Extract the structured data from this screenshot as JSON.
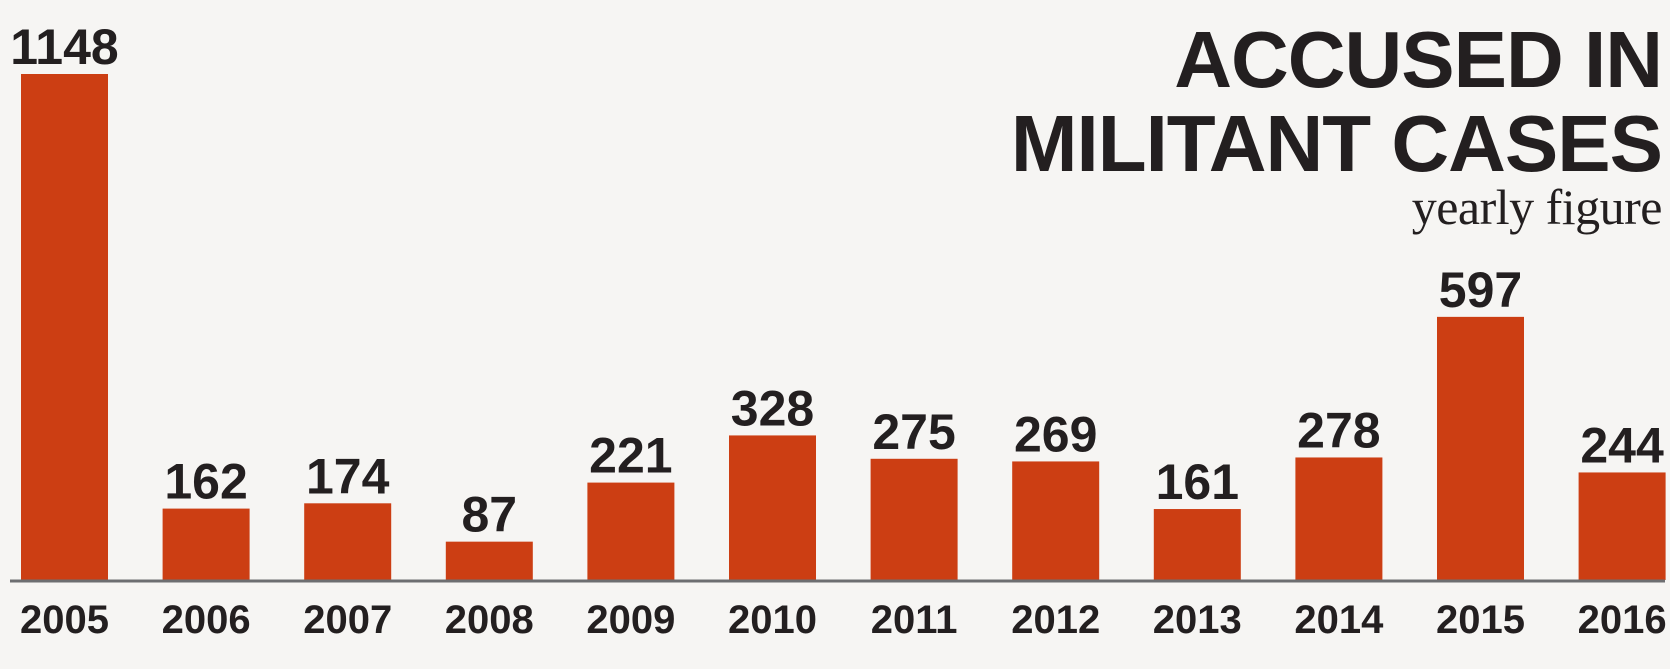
{
  "chart_data": {
    "type": "bar",
    "title_lines": [
      "ACCUSED IN",
      "MILITANT CASES"
    ],
    "subtitle": "yearly figure",
    "categories": [
      "2005",
      "2006",
      "2007",
      "2008",
      "2009",
      "2010",
      "2011",
      "2012",
      "2013",
      "2014",
      "2015",
      "2016"
    ],
    "values": [
      1148,
      162,
      174,
      87,
      221,
      328,
      275,
      269,
      161,
      278,
      597,
      244
    ],
    "value_labels": [
      "1148",
      "162",
      "174",
      "87",
      "221",
      "328",
      "275",
      "269",
      "161",
      "278",
      "597",
      "244"
    ],
    "ylim": [
      0,
      1148
    ],
    "grid": false,
    "bar_color": "#cc3e13",
    "axis_color": "#6d6e71"
  }
}
